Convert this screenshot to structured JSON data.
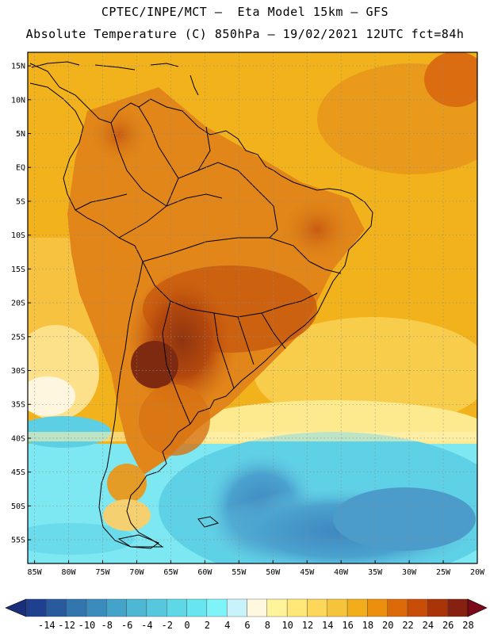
{
  "header": {
    "line1": "CPTEC/INPE/MCT –  Eta Model 15km – GFS",
    "line2": "Absolute Temperature (C) 850hPa – 19/02/2021 12UTC fct=84h"
  },
  "map": {
    "lon_range": [
      -86,
      -20
    ],
    "lat_range": [
      -58.5,
      17
    ],
    "lon_ticks": [
      "85W",
      "80W",
      "75W",
      "70W",
      "65W",
      "60W",
      "55W",
      "50W",
      "45W",
      "40W",
      "35W",
      "30W",
      "25W",
      "20W"
    ],
    "lat_ticks": [
      "15N",
      "10N",
      "5N",
      "EQ",
      "5S",
      "10S",
      "15S",
      "20S",
      "25S",
      "30S",
      "35S",
      "40S",
      "45S",
      "50S",
      "55S"
    ],
    "lon_values": [
      -85,
      -80,
      -75,
      -70,
      -65,
      -60,
      -55,
      -50,
      -45,
      -40,
      -35,
      -30,
      -25,
      -20
    ],
    "lat_values": [
      15,
      10,
      5,
      0,
      -5,
      -10,
      -15,
      -20,
      -25,
      -30,
      -35,
      -40,
      -45,
      -50,
      -55
    ],
    "gridlines": true,
    "coastline_color": "#000000"
  },
  "colorbar": {
    "labels": [
      "-14",
      "-12",
      "-10",
      "-8",
      "-6",
      "-4",
      "-2",
      "0",
      "2",
      "4",
      "6",
      "8",
      "10",
      "12",
      "14",
      "16",
      "18",
      "20",
      "22",
      "24",
      "26",
      "28"
    ],
    "colors": [
      "#1f3f8f",
      "#2a5a9e",
      "#3276ad",
      "#3a8cbc",
      "#43a3c8",
      "#4db7d4",
      "#56c8de",
      "#5ed8e6",
      "#68e6ef",
      "#7ef4f8",
      "#c9f3fa",
      "#fff8e0",
      "#fff49a",
      "#ffe878",
      "#fcd75a",
      "#f5c43a",
      "#f2ad1b",
      "#ec8f0e",
      "#dd6a08",
      "#c84d08",
      "#a83408",
      "#862010"
    ],
    "low_arrow_color": "#1a2f7a",
    "high_arrow_color": "#7a0a1a"
  }
}
